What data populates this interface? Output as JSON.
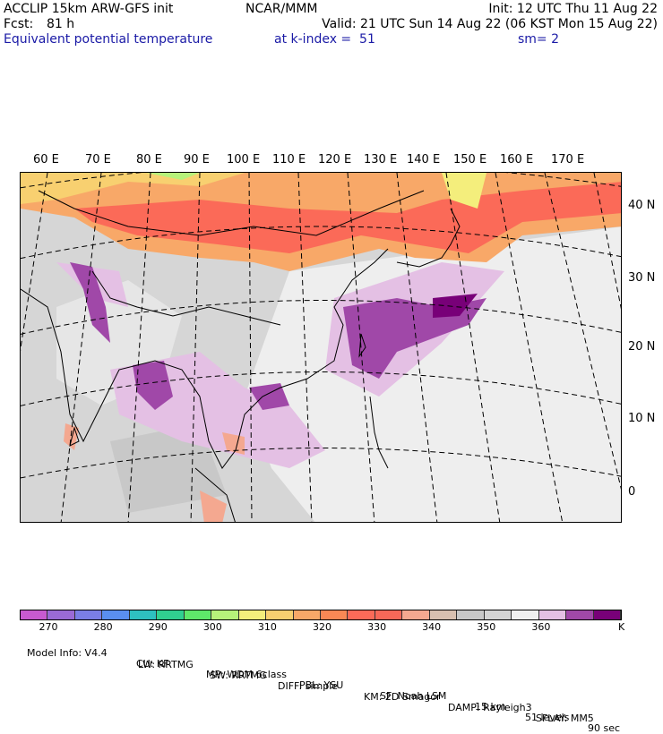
{
  "header": {
    "model": "ACCLIP 15km ARW-GFS init",
    "fcst_label": "Fcst:",
    "fcst_value": "81 h",
    "field": "Equivalent potential temperature",
    "center": "NCAR/MMM",
    "init": "Init: 12 UTC Thu 11 Aug 22",
    "valid": "Valid: 21 UTC Sun 14 Aug 22 (06 KST Mon 15 Aug 22)",
    "level": "at k-index =  51",
    "smoothing": "sm= 2"
  },
  "map": {
    "lon_labels": [
      "60 E",
      "70 E",
      "80 E",
      "90 E",
      "100 E",
      "110 E",
      "120 E",
      "130 E",
      "140 E",
      "150 E",
      "160 E",
      "170 E"
    ],
    "lat_labels": [
      "40 N",
      "30 N",
      "20 N",
      "10 N",
      "0"
    ]
  },
  "colorbar": {
    "colors": [
      "#c85ad0",
      "#9a6ad6",
      "#7a7ee6",
      "#5a8ff0",
      "#2ec0c0",
      "#30d090",
      "#5ee86a",
      "#b6f27a",
      "#f4ee7c",
      "#f8d070",
      "#f8a868",
      "#f98855",
      "#fb6a58",
      "#f86858",
      "#f4a890",
      "#d8c0b0",
      "#c8c8c8",
      "#d4d4d4",
      "#f0f0f0",
      "#e4c0e4",
      "#a048a8",
      "#780078"
    ],
    "labels": [
      "270",
      "280",
      "290",
      "300",
      "310",
      "320",
      "330",
      "340",
      "350",
      "360"
    ],
    "unit": "K"
  },
  "footer": {
    "line1": [
      "Model Info: V4.4",
      "CU: KF",
      "MP: WDM 6class",
      "PBL: YSU",
      "SF: Noah LSM",
      "15 km",
      "51 levels",
      "90 sec"
    ],
    "line2": [
      "LW: RRTMG",
      "SW: RRTMG",
      "DIFF: simple",
      "KM: 2D Smagor",
      "DAMP: Rayleigh3",
      "SFLAY: MM5"
    ]
  }
}
